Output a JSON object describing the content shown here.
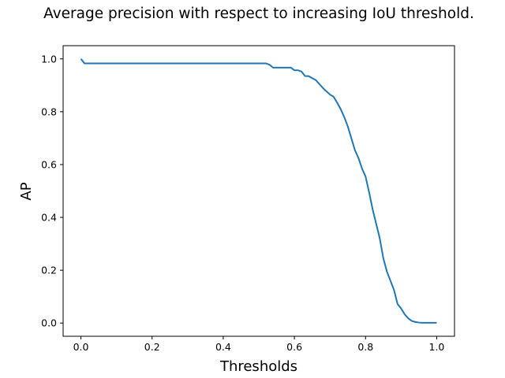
{
  "chart_data": {
    "type": "line",
    "title": "Average precision with respect to increasing IoU threshold.",
    "xlabel": "Thresholds",
    "ylabel": "AP",
    "xlim": [
      -0.05,
      1.05
    ],
    "ylim": [
      -0.05,
      1.05
    ],
    "xticks": [
      "0.0",
      "0.2",
      "0.4",
      "0.6",
      "0.8",
      "1.0"
    ],
    "yticks": [
      "0.0",
      "0.2",
      "0.4",
      "0.6",
      "0.8",
      "1.0"
    ],
    "grid": false,
    "colors": {
      "line": "#1f77b4"
    },
    "series": [
      {
        "x": [
          0.0,
          0.01,
          0.02,
          0.1,
          0.2,
          0.3,
          0.4,
          0.5,
          0.52,
          0.53,
          0.54,
          0.55,
          0.56,
          0.57,
          0.58,
          0.59,
          0.6,
          0.61,
          0.62,
          0.63,
          0.64,
          0.65,
          0.66,
          0.67,
          0.68,
          0.69,
          0.7,
          0.71,
          0.72,
          0.73,
          0.74,
          0.75,
          0.76,
          0.77,
          0.78,
          0.79,
          0.8,
          0.81,
          0.82,
          0.83,
          0.84,
          0.85,
          0.86,
          0.87,
          0.88,
          0.89,
          0.9,
          0.91,
          0.92,
          0.93,
          0.94,
          0.95,
          0.96,
          0.97,
          0.98,
          0.99,
          1.0
        ],
        "y": [
          1.0,
          0.983,
          0.983,
          0.983,
          0.983,
          0.983,
          0.983,
          0.983,
          0.983,
          0.978,
          0.967,
          0.967,
          0.967,
          0.967,
          0.967,
          0.967,
          0.957,
          0.957,
          0.952,
          0.935,
          0.935,
          0.927,
          0.92,
          0.905,
          0.89,
          0.877,
          0.865,
          0.857,
          0.835,
          0.81,
          0.78,
          0.745,
          0.7,
          0.655,
          0.625,
          0.585,
          0.555,
          0.495,
          0.43,
          0.375,
          0.32,
          0.245,
          0.195,
          0.16,
          0.125,
          0.072,
          0.055,
          0.033,
          0.018,
          0.008,
          0.004,
          0.002,
          0.001,
          0.001,
          0.001,
          0.001,
          0.001
        ]
      }
    ]
  }
}
